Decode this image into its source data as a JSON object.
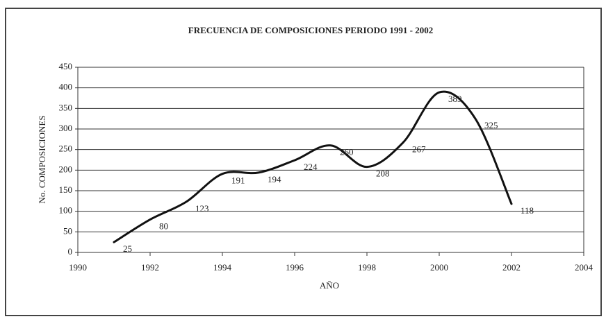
{
  "chart_data": {
    "type": "line",
    "title": "FRECUENCIA DE COMPOSICIONES PERIODO 1991 - 2002",
    "xlabel": "AÑO",
    "ylabel": "No. COMPOSICIONES",
    "x": [
      1991,
      1992,
      1993,
      1994,
      1995,
      1996,
      1997,
      1998,
      1999,
      2000,
      2001,
      2002
    ],
    "values": [
      25,
      80,
      123,
      191,
      194,
      224,
      260,
      208,
      267,
      389,
      325,
      118
    ],
    "color": "#111111",
    "xlim": [
      1990,
      2004
    ],
    "xticks": [
      1990,
      1992,
      1994,
      1996,
      1998,
      2000,
      2002,
      2004
    ],
    "ylim": [
      0,
      450
    ],
    "yticks": [
      0,
      50,
      100,
      150,
      200,
      250,
      300,
      350,
      400,
      450
    ],
    "grid": true,
    "smooth": true
  }
}
